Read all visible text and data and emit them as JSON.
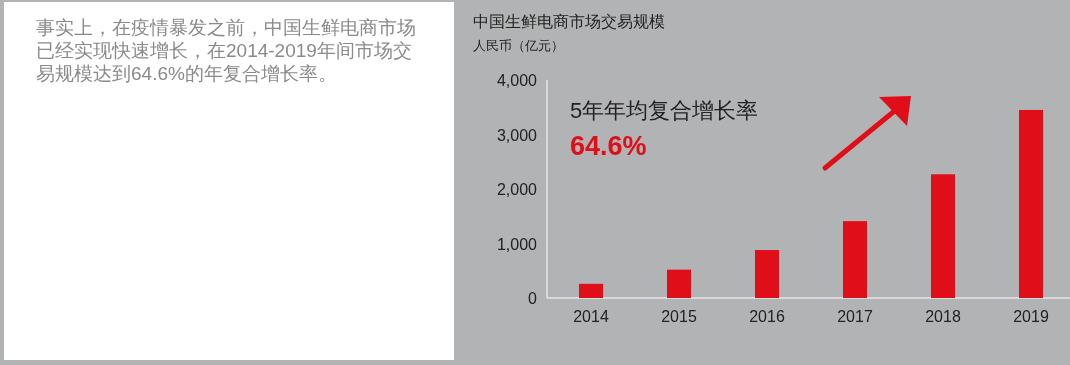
{
  "chart_data": [
    {
      "type": "other",
      "annotations": [
        "事实上，在疫情暴发之前，中国生鲜电商市场已经实现快速增长，在2014-2019年间市场交易规模达到64.6%的年复合增长率。"
      ]
    },
    {
      "type": "bar",
      "title": "中国生鲜电商市场交易规模",
      "ylabel": "人民币（亿元）",
      "categories": [
        "2014",
        "2015",
        "2016",
        "2017",
        "2018",
        "2019"
      ],
      "values": [
        260,
        520,
        880,
        1410,
        2270,
        3450
      ],
      "color": "#e00e19",
      "ylim": [
        0,
        4000
      ],
      "yticks": [
        {
          "value": 0,
          "label": "0"
        },
        {
          "value": 1000,
          "label": "1,000"
        },
        {
          "value": 2000,
          "label": "2,000"
        },
        {
          "value": 3000,
          "label": "3,000"
        },
        {
          "value": 4000,
          "label": "4,000"
        }
      ],
      "annotations": [
        "5年年均复合增长率",
        "64.6%"
      ]
    }
  ]
}
